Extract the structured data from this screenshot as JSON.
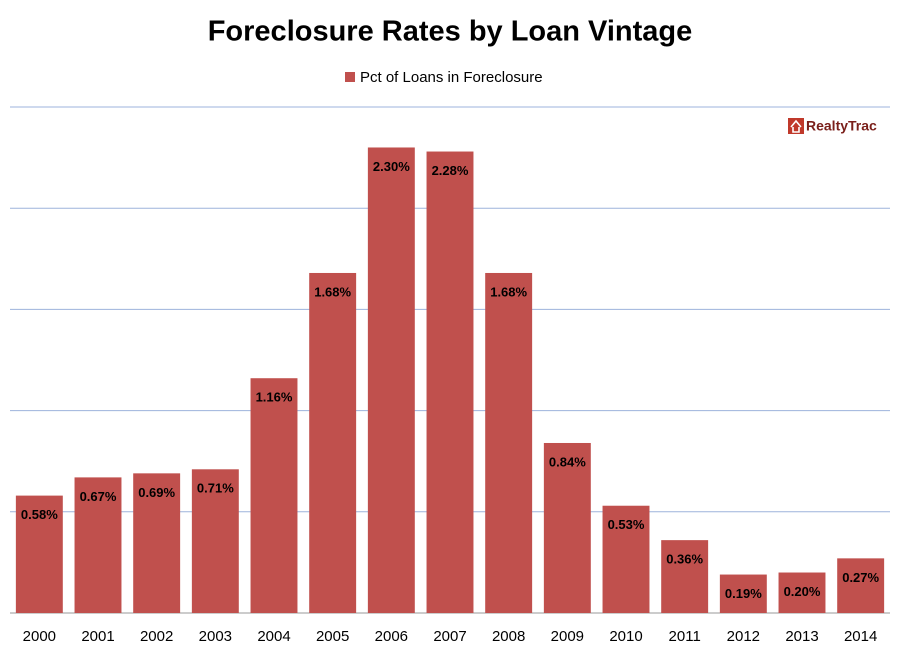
{
  "chart_data": {
    "type": "bar",
    "title": "Foreclosure Rates by Loan Vintage",
    "categories": [
      "2000",
      "2001",
      "2002",
      "2003",
      "2004",
      "2005",
      "2006",
      "2007",
      "2008",
      "2009",
      "2010",
      "2011",
      "2012",
      "2013",
      "2014"
    ],
    "series": [
      {
        "name": "Pct of Loans in Foreclosure",
        "color": "#c0504d",
        "values": [
          0.58,
          0.67,
          0.69,
          0.71,
          1.16,
          1.68,
          2.3,
          2.28,
          1.68,
          0.84,
          0.53,
          0.36,
          0.19,
          0.2,
          0.27
        ],
        "value_labels": [
          "0.58%",
          "0.67%",
          "0.69%",
          "0.71%",
          "1.16%",
          "1.68%",
          "2.30%",
          "2.28%",
          "1.68%",
          "0.84%",
          "0.53%",
          "0.36%",
          "0.19%",
          "0.20%",
          "0.27%"
        ]
      }
    ],
    "ylim": [
      0,
      2.5
    ],
    "yticks": [
      0,
      0.5,
      1,
      1.5,
      2,
      2.5
    ],
    "grid": true,
    "legend": "top",
    "watermark": "RealtyTrac"
  }
}
